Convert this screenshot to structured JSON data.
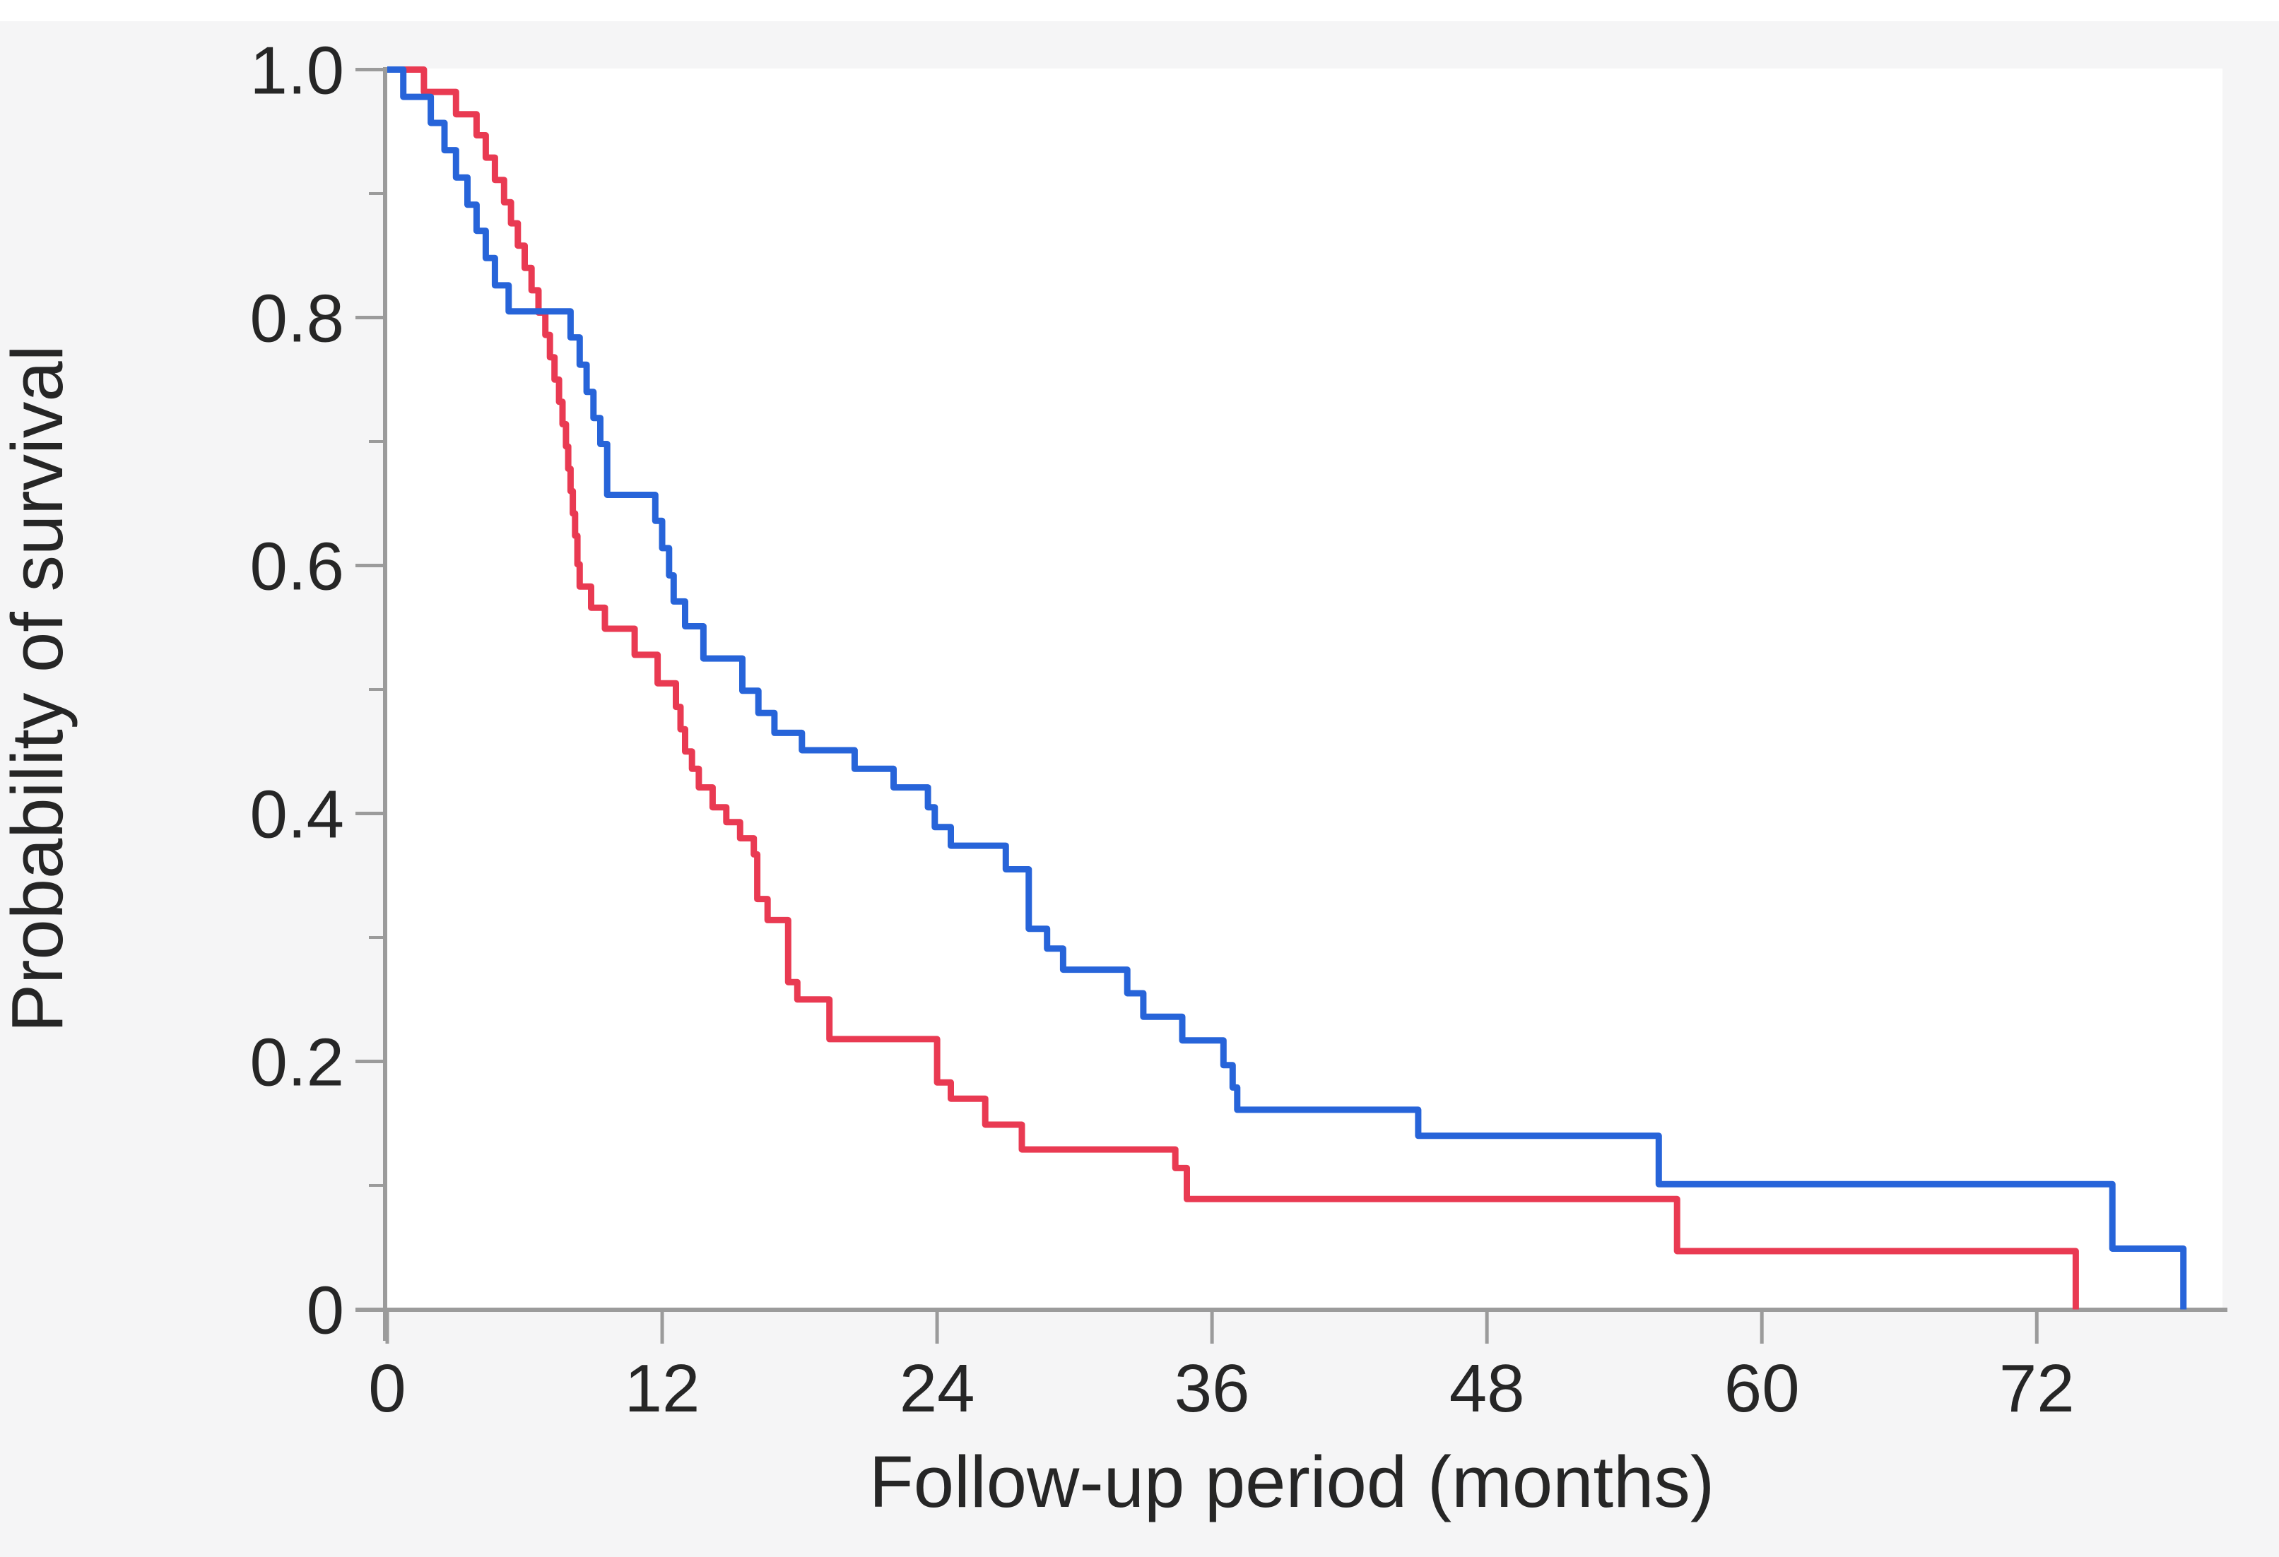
{
  "page": {
    "background_color": "#f5f5f6",
    "top_strip_color": "#ffffff",
    "plot_background_color": "#ffffff",
    "axis_color": "#9b9b9b",
    "text_color": "#262626"
  },
  "chart_data": {
    "type": "line",
    "subtype": "kaplan-meier-step",
    "step_mode": "post",
    "title": "",
    "xlabel": "Follow-up period (months)",
    "ylabel": "Probability of survival",
    "xlim": [
      0,
      80.5
    ],
    "ylim": [
      0,
      1.0
    ],
    "x_tick_labels": [
      "0",
      "12",
      "24",
      "36",
      "48",
      "60",
      "72"
    ],
    "x_tick_values": [
      0,
      12,
      24,
      36,
      48,
      60,
      72
    ],
    "y_tick_labels": [
      "1.0",
      "0.8",
      "0.6",
      "0.4",
      "0.2",
      "0"
    ],
    "y_tick_values": [
      1.0,
      0.8,
      0.6,
      0.4,
      0.2,
      0
    ],
    "y_minor_tick_values": [
      0.9,
      0.7,
      0.5,
      0.3,
      0.1
    ],
    "grid": "off",
    "legend": "none",
    "series": [
      {
        "name": "red_series",
        "color": "#e93a52",
        "points": [
          [
            0,
            1.0
          ],
          [
            1.6,
            0.982
          ],
          [
            3.0,
            0.964
          ],
          [
            3.9,
            0.947
          ],
          [
            4.3,
            0.929
          ],
          [
            4.7,
            0.911
          ],
          [
            5.1,
            0.893
          ],
          [
            5.4,
            0.876
          ],
          [
            5.7,
            0.858
          ],
          [
            6.0,
            0.84
          ],
          [
            6.3,
            0.822
          ],
          [
            6.6,
            0.804
          ],
          [
            6.9,
            0.786
          ],
          [
            7.1,
            0.768
          ],
          [
            7.3,
            0.75
          ],
          [
            7.5,
            0.732
          ],
          [
            7.65,
            0.714
          ],
          [
            7.8,
            0.696
          ],
          [
            7.9,
            0.678
          ],
          [
            8.0,
            0.66
          ],
          [
            8.1,
            0.642
          ],
          [
            8.2,
            0.624
          ],
          [
            8.3,
            0.601
          ],
          [
            8.4,
            0.583
          ],
          [
            8.9,
            0.566
          ],
          [
            9.5,
            0.549
          ],
          [
            10.8,
            0.528
          ],
          [
            11.8,
            0.505
          ],
          [
            12.6,
            0.486
          ],
          [
            12.8,
            0.468
          ],
          [
            13.0,
            0.45
          ],
          [
            13.3,
            0.436
          ],
          [
            13.6,
            0.421
          ],
          [
            14.2,
            0.405
          ],
          [
            14.8,
            0.393
          ],
          [
            15.4,
            0.38
          ],
          [
            16.0,
            0.367
          ],
          [
            16.15,
            0.331
          ],
          [
            16.6,
            0.314
          ],
          [
            17.5,
            0.264
          ],
          [
            17.9,
            0.25
          ],
          [
            19.3,
            0.218
          ],
          [
            24.0,
            0.183
          ],
          [
            24.6,
            0.17
          ],
          [
            26.1,
            0.149
          ],
          [
            27.7,
            0.129
          ],
          [
            34.4,
            0.114
          ],
          [
            34.9,
            0.089
          ],
          [
            56.3,
            0.047
          ],
          [
            73.7,
            0.0
          ]
        ]
      },
      {
        "name": "blue_series",
        "color": "#2764d9",
        "points": [
          [
            0,
            1.0
          ],
          [
            0.7,
            0.978
          ],
          [
            1.9,
            0.957
          ],
          [
            2.5,
            0.935
          ],
          [
            3.0,
            0.913
          ],
          [
            3.5,
            0.891
          ],
          [
            3.9,
            0.87
          ],
          [
            4.3,
            0.848
          ],
          [
            4.7,
            0.826
          ],
          [
            5.3,
            0.805
          ],
          [
            8.0,
            0.784
          ],
          [
            8.4,
            0.762
          ],
          [
            8.7,
            0.74
          ],
          [
            9.0,
            0.719
          ],
          [
            9.3,
            0.698
          ],
          [
            9.6,
            0.657
          ],
          [
            11.7,
            0.636
          ],
          [
            12.0,
            0.614
          ],
          [
            12.3,
            0.592
          ],
          [
            12.5,
            0.571
          ],
          [
            13.0,
            0.551
          ],
          [
            13.8,
            0.525
          ],
          [
            15.5,
            0.499
          ],
          [
            16.2,
            0.481
          ],
          [
            16.9,
            0.465
          ],
          [
            18.1,
            0.451
          ],
          [
            20.4,
            0.436
          ],
          [
            22.1,
            0.421
          ],
          [
            23.6,
            0.405
          ],
          [
            23.9,
            0.389
          ],
          [
            24.6,
            0.374
          ],
          [
            27.0,
            0.355
          ],
          [
            28.0,
            0.307
          ],
          [
            28.8,
            0.291
          ],
          [
            29.5,
            0.274
          ],
          [
            32.3,
            0.255
          ],
          [
            33.0,
            0.236
          ],
          [
            34.7,
            0.217
          ],
          [
            36.5,
            0.197
          ],
          [
            36.9,
            0.179
          ],
          [
            37.1,
            0.161
          ],
          [
            45.0,
            0.14
          ],
          [
            55.5,
            0.101
          ],
          [
            75.3,
            0.049
          ],
          [
            78.4,
            0.0
          ]
        ]
      }
    ]
  }
}
